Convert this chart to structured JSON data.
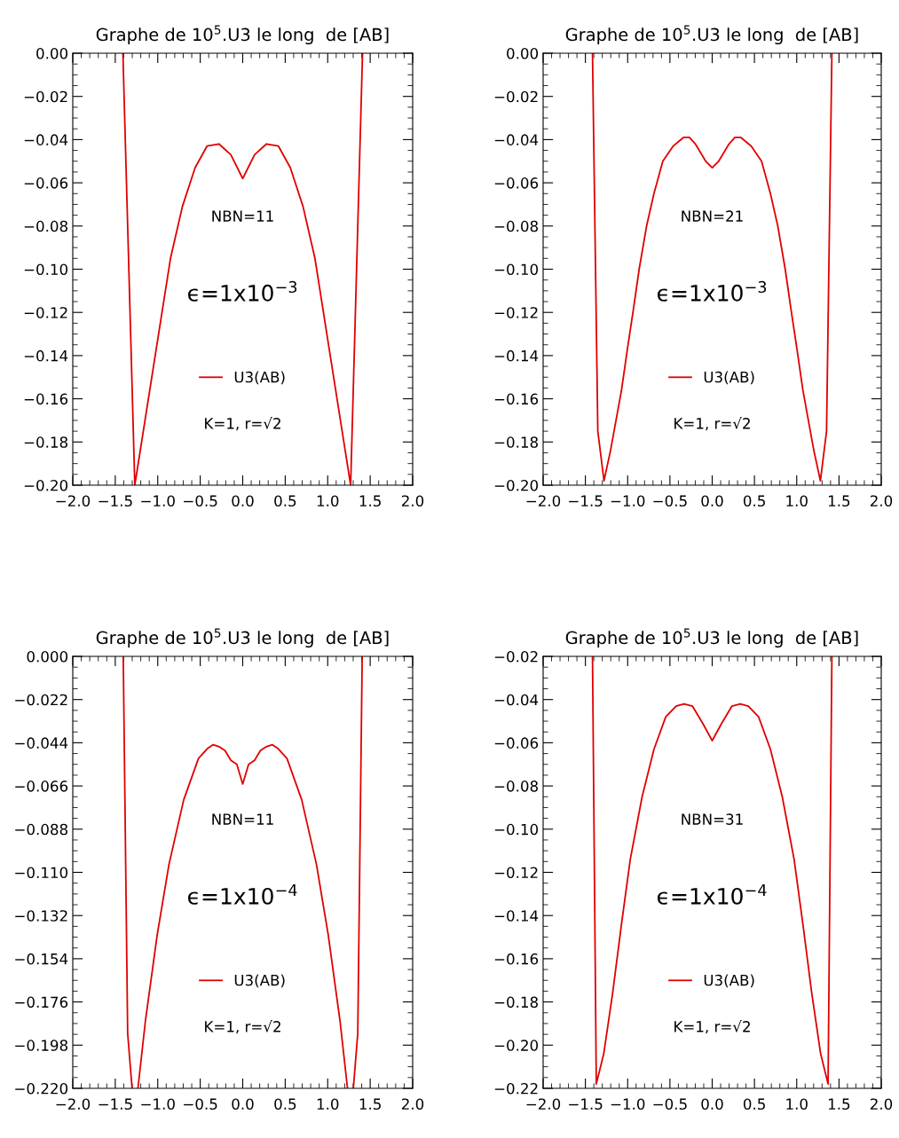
{
  "chart_data": [
    {
      "type": "line",
      "title": "Graphe de 10$^{5}$.U3 le long  de [AB]",
      "xlim": [
        -2.0,
        2.0
      ],
      "xticks": [
        {
          "value": -2,
          "label": "−2.0"
        },
        {
          "value": -1.5,
          "label": "−1.5"
        },
        {
          "value": -1,
          "label": "−1.0"
        },
        {
          "value": -0.5,
          "label": "−0.5"
        },
        {
          "value": 0,
          "label": "0.0"
        },
        {
          "value": 0.5,
          "label": "0.5"
        },
        {
          "value": 1,
          "label": "1.0"
        },
        {
          "value": 1.5,
          "label": "1.5"
        },
        {
          "value": 2,
          "label": "2.0"
        }
      ],
      "ylim": [
        -0.2,
        0.0
      ],
      "yticks": [
        {
          "value": 0,
          "label": "0.00"
        },
        {
          "value": -0.02,
          "label": "−0.02"
        },
        {
          "value": -0.04,
          "label": "−0.04"
        },
        {
          "value": -0.06,
          "label": "−0.06"
        },
        {
          "value": -0.08,
          "label": "−0.08"
        },
        {
          "value": -0.1,
          "label": "−0.10"
        },
        {
          "value": -0.12,
          "label": "−0.12"
        },
        {
          "value": -0.14,
          "label": "−0.14"
        },
        {
          "value": -0.16,
          "label": "−0.16"
        },
        {
          "value": -0.18,
          "label": "−0.18"
        },
        {
          "value": -0.2,
          "label": "−0.20"
        }
      ],
      "grid": false,
      "legend": "bottom",
      "annotations": [
        "NBN=11",
        "ϵ=1x10$^{−3}$",
        "K=1, r=√2"
      ],
      "series": [
        {
          "name": "U3(AB)",
          "color": "#e00000",
          "x": [
            -1.41,
            -1.27,
            -0.85,
            -0.71,
            -0.56,
            -0.42,
            -0.28,
            -0.14,
            0,
            0.14,
            0.28,
            0.42,
            0.56,
            0.71,
            0.85,
            1.27,
            1.41
          ],
          "values": [
            0,
            -0.2,
            -0.095,
            -0.071,
            -0.053,
            -0.043,
            -0.042,
            -0.047,
            -0.058,
            -0.047,
            -0.042,
            -0.043,
            -0.053,
            -0.071,
            -0.095,
            -0.2,
            0
          ]
        }
      ]
    },
    {
      "type": "line",
      "title": "Graphe de 10$^{5}$.U3 le long  de [AB]",
      "xlim": [
        -2.0,
        2.0
      ],
      "xticks": [
        {
          "value": -2,
          "label": "−2.0"
        },
        {
          "value": -1.5,
          "label": "−1.5"
        },
        {
          "value": -1,
          "label": "−1.0"
        },
        {
          "value": -0.5,
          "label": "−0.5"
        },
        {
          "value": 0,
          "label": "0.0"
        },
        {
          "value": 0.5,
          "label": "0.5"
        },
        {
          "value": 1,
          "label": "1.0"
        },
        {
          "value": 1.5,
          "label": "1.5"
        },
        {
          "value": 2,
          "label": "2.0"
        }
      ],
      "ylim": [
        -0.2,
        0.0
      ],
      "yticks": [
        {
          "value": 0,
          "label": "0.00"
        },
        {
          "value": -0.02,
          "label": "−0.02"
        },
        {
          "value": -0.04,
          "label": "−0.04"
        },
        {
          "value": -0.06,
          "label": "−0.06"
        },
        {
          "value": -0.08,
          "label": "−0.08"
        },
        {
          "value": -0.1,
          "label": "−0.10"
        },
        {
          "value": -0.12,
          "label": "−0.12"
        },
        {
          "value": -0.14,
          "label": "−0.14"
        },
        {
          "value": -0.16,
          "label": "−0.16"
        },
        {
          "value": -0.18,
          "label": "−0.18"
        },
        {
          "value": -0.2,
          "label": "−0.20"
        }
      ],
      "grid": false,
      "legend": "bottom",
      "annotations": [
        "NBN=21",
        "ϵ=1x10$^{−3}$",
        "K=1, r=√2"
      ],
      "series": [
        {
          "name": "U3(AB)",
          "color": "#e00000",
          "x": [
            -1.416,
            -1.353,
            -1.28,
            -1.203,
            -1.073,
            -1.003,
            -0.934,
            -0.864,
            -0.776,
            -0.689,
            -0.584,
            -0.462,
            -0.339,
            -0.269,
            -0.199,
            -0.077,
            0,
            0.077,
            0.199,
            0.269,
            0.339,
            0.462,
            0.584,
            0.689,
            0.776,
            0.864,
            0.934,
            1.003,
            1.073,
            1.203,
            1.28,
            1.353,
            1.416
          ],
          "values": [
            0,
            -0.175,
            -0.198,
            -0.184,
            -0.156,
            -0.137,
            -0.119,
            -0.1,
            -0.08,
            -0.065,
            -0.05,
            -0.043,
            -0.039,
            -0.039,
            -0.042,
            -0.05,
            -0.053,
            -0.05,
            -0.042,
            -0.039,
            -0.039,
            -0.043,
            -0.05,
            -0.065,
            -0.08,
            -0.1,
            -0.119,
            -0.137,
            -0.156,
            -0.184,
            -0.198,
            -0.175,
            0
          ]
        }
      ]
    },
    {
      "type": "line",
      "title": "Graphe de 10$^{5}$.U3 le long  de [AB]",
      "xlim": [
        -2.0,
        2.0
      ],
      "xticks": [
        {
          "value": -2,
          "label": "−2.0"
        },
        {
          "value": -1.5,
          "label": "−1.5"
        },
        {
          "value": -1,
          "label": "−1.0"
        },
        {
          "value": -0.5,
          "label": "−0.5"
        },
        {
          "value": 0,
          "label": "0.0"
        },
        {
          "value": 0.5,
          "label": "0.5"
        },
        {
          "value": 1,
          "label": "1.0"
        },
        {
          "value": 1.5,
          "label": "1.5"
        },
        {
          "value": 2,
          "label": "2.0"
        }
      ],
      "ylim": [
        -0.22,
        0.0
      ],
      "yticks": [
        {
          "value": 0,
          "label": "0.000"
        },
        {
          "value": -0.022,
          "label": "−0.022"
        },
        {
          "value": -0.044,
          "label": "−0.044"
        },
        {
          "value": -0.066,
          "label": "−0.066"
        },
        {
          "value": -0.088,
          "label": "−0.088"
        },
        {
          "value": -0.11,
          "label": "−0.110"
        },
        {
          "value": -0.132,
          "label": "−0.132"
        },
        {
          "value": -0.154,
          "label": "−0.154"
        },
        {
          "value": -0.176,
          "label": "−0.176"
        },
        {
          "value": -0.198,
          "label": "−0.198"
        },
        {
          "value": -0.22,
          "label": "−0.220"
        }
      ],
      "grid": false,
      "legend": "bottom",
      "annotations": [
        "NBN=11",
        "ϵ=1x10$^{−4}$",
        "K=1, r=√2"
      ],
      "series": [
        {
          "name": "U3(AB)",
          "color": "#e00000",
          "x": [
            -1.406,
            -1.354,
            -1.302,
            -1.27,
            -1.233,
            -1.146,
            -1.007,
            -0.868,
            -0.694,
            -0.521,
            -0.417,
            -0.347,
            -0.278,
            -0.208,
            -0.139,
            -0.069,
            0,
            0.069,
            0.139,
            0.208,
            0.278,
            0.347,
            0.417,
            0.521,
            0.694,
            0.868,
            1.007,
            1.146,
            1.233,
            1.27,
            1.302,
            1.354,
            1.406
          ],
          "values": [
            0,
            -0.192,
            -0.22,
            null,
            -0.22,
            -0.186,
            -0.142,
            -0.106,
            -0.073,
            -0.052,
            -0.047,
            -0.045,
            -0.046,
            -0.048,
            -0.053,
            -0.055,
            -0.065,
            -0.055,
            -0.053,
            -0.048,
            -0.046,
            -0.045,
            -0.047,
            -0.052,
            -0.073,
            -0.106,
            -0.142,
            -0.186,
            -0.22,
            null,
            -0.22,
            -0.192,
            0
          ]
        }
      ]
    },
    {
      "type": "line",
      "title": "Graphe de 10$^{5}$.U3 le long  de [AB]",
      "xlim": [
        -2.0,
        2.0
      ],
      "xticks": [
        {
          "value": -2,
          "label": "−2.0"
        },
        {
          "value": -1.5,
          "label": "−1.5"
        },
        {
          "value": -1,
          "label": "−1.0"
        },
        {
          "value": -0.5,
          "label": "−0.5"
        },
        {
          "value": 0,
          "label": "0.0"
        },
        {
          "value": 0.5,
          "label": "0.5"
        },
        {
          "value": 1,
          "label": "1.0"
        },
        {
          "value": 1.5,
          "label": "1.5"
        },
        {
          "value": 2,
          "label": "2.0"
        }
      ],
      "ylim": [
        -0.22,
        -0.02
      ],
      "yticks": [
        {
          "value": -0.02,
          "label": "−0.02"
        },
        {
          "value": -0.04,
          "label": "−0.04"
        },
        {
          "value": -0.06,
          "label": "−0.06"
        },
        {
          "value": -0.08,
          "label": "−0.08"
        },
        {
          "value": -0.1,
          "label": "−0.10"
        },
        {
          "value": -0.12,
          "label": "−0.12"
        },
        {
          "value": -0.14,
          "label": "−0.14"
        },
        {
          "value": -0.16,
          "label": "−0.16"
        },
        {
          "value": -0.18,
          "label": "−0.18"
        },
        {
          "value": -0.2,
          "label": "−0.20"
        },
        {
          "value": -0.22,
          "label": "−0.22"
        }
      ],
      "grid": false,
      "legend": "bottom",
      "annotations": [
        "NBN=31",
        "ϵ=1x10$^{−4}$",
        "K=1, r=√2"
      ],
      "series": [
        {
          "name": "U3(AB)",
          "color": "#e00000",
          "x": [
            -1.416,
            -1.371,
            -1.283,
            -1.178,
            -1.073,
            -0.969,
            -0.829,
            -0.689,
            -0.549,
            -0.427,
            -0.332,
            -0.234,
            -0.112,
            0,
            0.112,
            0.234,
            0.332,
            0.427,
            0.549,
            0.689,
            0.829,
            0.969,
            1.073,
            1.178,
            1.283,
            1.371,
            1.416
          ],
          "values": [
            -0.02,
            -0.218,
            -0.204,
            -0.176,
            -0.144,
            -0.114,
            -0.085,
            -0.063,
            -0.048,
            -0.043,
            -0.042,
            -0.043,
            -0.051,
            -0.059,
            -0.051,
            -0.043,
            -0.042,
            -0.043,
            -0.048,
            -0.063,
            -0.085,
            -0.114,
            -0.144,
            -0.176,
            -0.204,
            -0.218,
            -0.02
          ]
        }
      ]
    }
  ]
}
